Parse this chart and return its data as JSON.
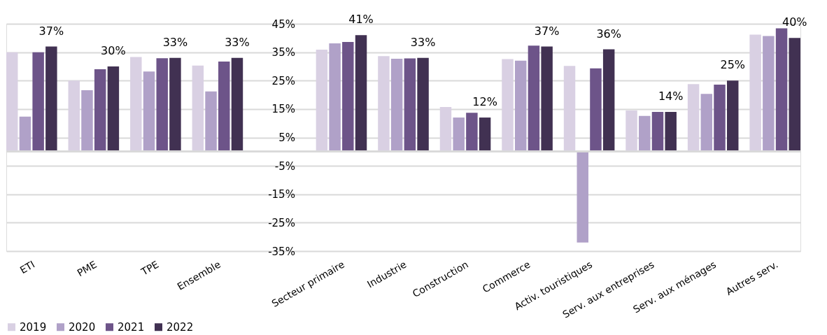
{
  "chart_data": {
    "type": "bar",
    "categories": [
      "ETI",
      "PME",
      "TPE",
      "Ensemble",
      "Secteur primaire",
      "Industrie",
      "Construction",
      "Commerce",
      "Activ. touristiques",
      "Serv. aux entreprises",
      "Serv. aux ménages",
      "Autres serv."
    ],
    "series": [
      {
        "name": "2019",
        "color": "#d9d0e3",
        "values": [
          35,
          25,
          33.3,
          30.3,
          35.9,
          33.6,
          15.7,
          32.6,
          30.2,
          14.5,
          23.8,
          41.2
        ]
      },
      {
        "name": "2020",
        "color": "#b0a1c8",
        "values": [
          12.3,
          21.6,
          28.2,
          21.2,
          38.1,
          32.7,
          12.0,
          32.0,
          -32,
          12.6,
          20.3,
          40.7
        ]
      },
      {
        "name": "2021",
        "color": "#6d5489",
        "values": [
          35,
          29,
          32.9,
          31.7,
          38.6,
          32.8,
          13.7,
          37.3,
          29.3,
          14.0,
          23.6,
          43.4
        ]
      },
      {
        "name": "2022",
        "color": "#413152",
        "values": [
          37,
          30,
          33,
          33,
          41,
          33,
          12,
          37,
          36,
          14,
          25,
          40
        ],
        "value_labels": [
          "37%",
          "30%",
          "33%",
          "33%",
          "41%",
          "33%",
          "12%",
          "37%",
          "36%",
          "14%",
          "25%",
          "40%"
        ]
      }
    ],
    "ylim": [
      -35,
      45
    ],
    "yticks": [
      {
        "value": 45,
        "label": "45%"
      },
      {
        "value": 35,
        "label": "35%"
      },
      {
        "value": 25,
        "label": "25%"
      },
      {
        "value": 15,
        "label": "15%"
      },
      {
        "value": 5,
        "label": "5%"
      },
      {
        "value": -5,
        "label": "-5%"
      },
      {
        "value": -15,
        "label": "-15%"
      },
      {
        "value": -25,
        "label": "-25%"
      },
      {
        "value": -35,
        "label": "-35%"
      }
    ],
    "grid": "y",
    "legend": "bottom left"
  }
}
